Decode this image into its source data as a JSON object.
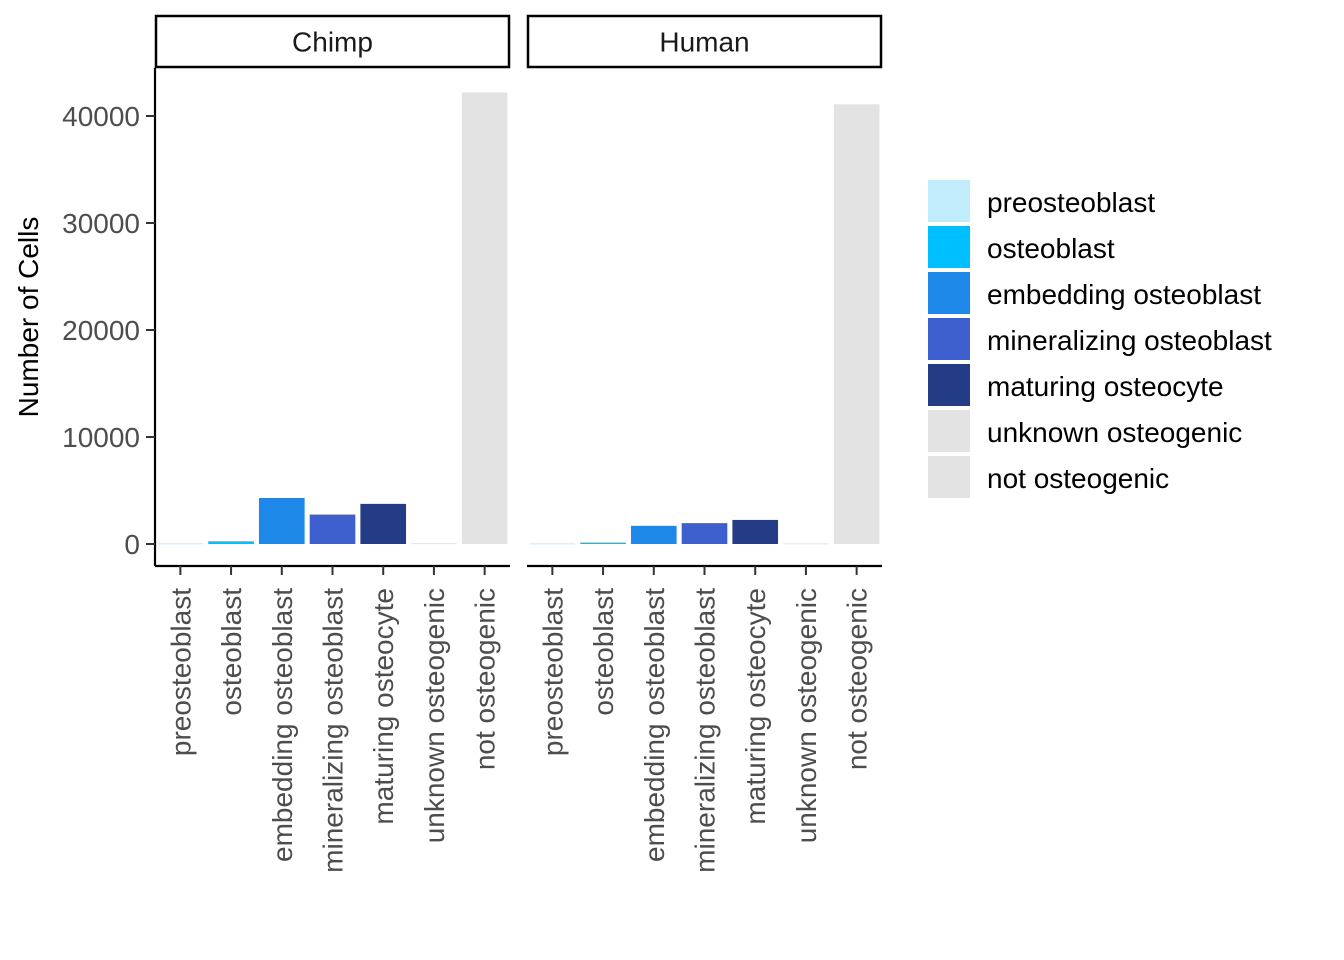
{
  "chart_data": {
    "type": "bar",
    "ylabel": "Number of Cells",
    "xlabel": "",
    "ylim": [
      0,
      45000
    ],
    "y_ticks": [
      0,
      10000,
      20000,
      30000,
      40000
    ],
    "grid": false,
    "legend_position": "right",
    "categories": [
      "preosteoblast",
      "osteoblast",
      "embedding osteoblast",
      "mineralizing osteoblast",
      "maturing osteocyte",
      "unknown osteogenic",
      "not osteogenic"
    ],
    "colors": [
      "#c0ecfb",
      "#00bfff",
      "#1e88e8",
      "#3e5fce",
      "#243c86",
      "#e3e3e3",
      "#e3e3e3"
    ],
    "panels": [
      {
        "name": "Chimp",
        "values": [
          60,
          250,
          4300,
          2750,
          3750,
          80,
          42200
        ]
      },
      {
        "name": "Human",
        "values": [
          60,
          130,
          1700,
          1950,
          2250,
          60,
          41100
        ]
      }
    ],
    "legend": [
      "preosteoblast",
      "osteoblast",
      "embedding osteoblast",
      "mineralizing osteoblast",
      "maturing osteocyte",
      "unknown osteogenic",
      "not osteogenic"
    ]
  }
}
